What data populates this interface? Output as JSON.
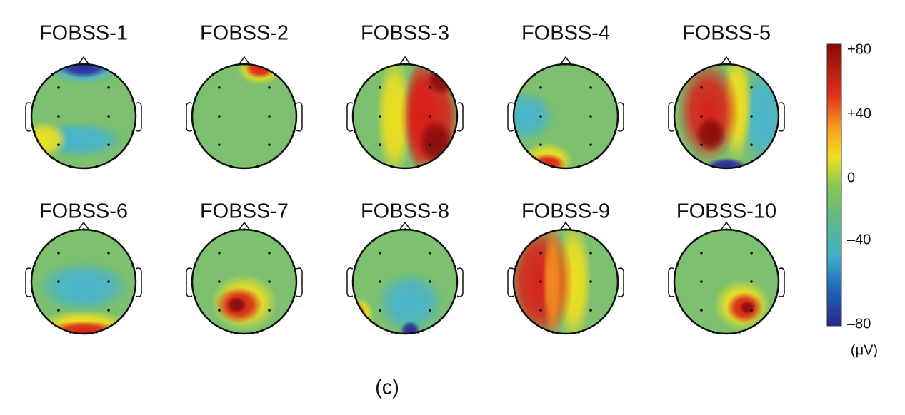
{
  "maps": [
    {
      "title": "FOBSS-1"
    },
    {
      "title": "FOBSS-2"
    },
    {
      "title": "FOBSS-3"
    },
    {
      "title": "FOBSS-4"
    },
    {
      "title": "FOBSS-5"
    },
    {
      "title": "FOBSS-6"
    },
    {
      "title": "FOBSS-7"
    },
    {
      "title": "FOBSS-8"
    },
    {
      "title": "FOBSS-9"
    },
    {
      "title": "FOBSS-10"
    }
  ],
  "colorbar": {
    "ticks": [
      "+80",
      "+40",
      "0",
      "–40",
      "–80"
    ],
    "unit": "(μV)"
  },
  "caption": "(c)"
}
